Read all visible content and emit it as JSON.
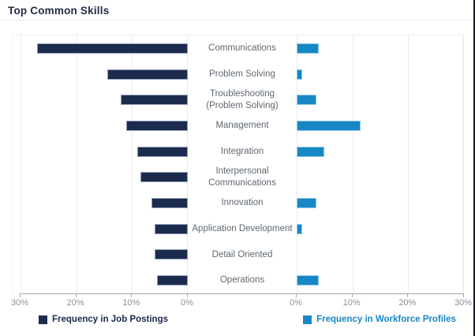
{
  "page": {
    "title": "Top Common Skills"
  },
  "chart_data": {
    "type": "bar",
    "variant": "diverging-horizontal",
    "title": "Top Common Skills",
    "categories": [
      "Communications",
      "Problem Solving",
      "Troubleshooting (Problem Solving)",
      "Management",
      "Integration",
      "Interpersonal Communications",
      "Innovation",
      "Application Development",
      "Detail Oriented",
      "Operations"
    ],
    "series": [
      {
        "name": "Frequency in Job Postings",
        "side": "left",
        "color": "#1b2b4d",
        "unit": "%",
        "values": [
          27,
          14.5,
          12,
          11,
          9,
          8.5,
          6.5,
          6,
          6,
          5.5
        ]
      },
      {
        "name": "Frequency in Workforce Profiles",
        "side": "right",
        "color": "#1787c5",
        "unit": "%",
        "values": [
          4,
          1,
          3.5,
          11.5,
          5,
          0,
          3.5,
          1,
          0,
          4
        ]
      }
    ],
    "axis": {
      "max": 30,
      "tick_step": 10,
      "left_tick_labels": [
        "30%",
        "20%",
        "10%",
        "0%"
      ],
      "right_tick_labels": [
        "0%",
        "10%",
        "20%",
        "30%"
      ],
      "grid": true
    },
    "legend_position": "bottom"
  }
}
